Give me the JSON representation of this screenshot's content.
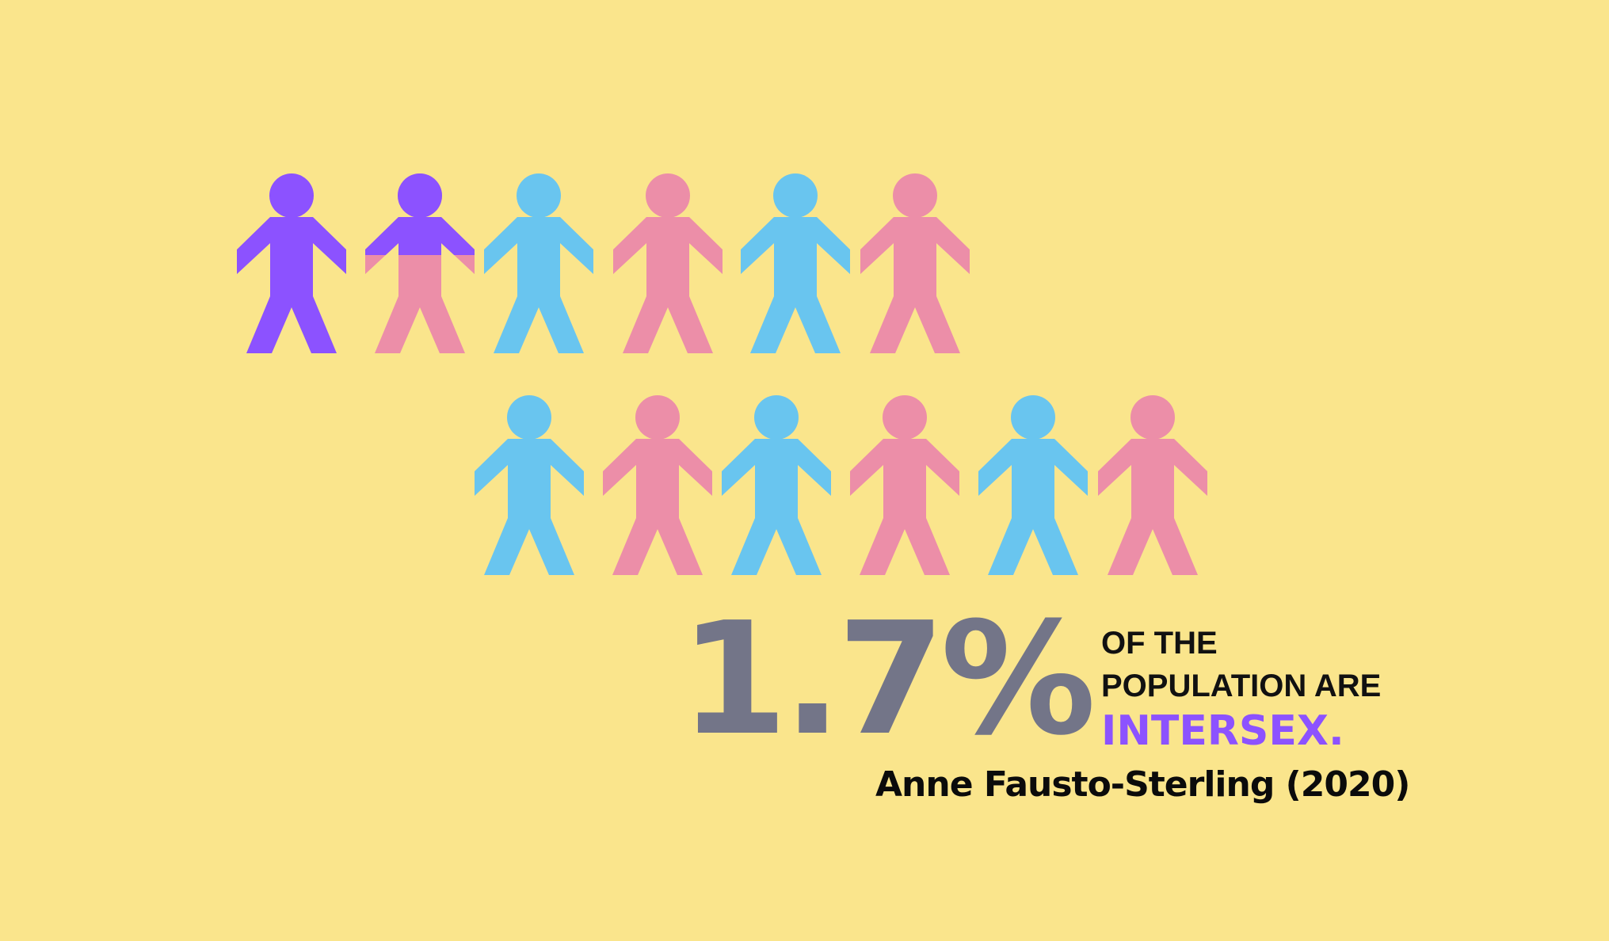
{
  "people": [
    {
      "row": 1,
      "color": "#8c52ff",
      "kind": "intersex-figure"
    },
    {
      "row": 1,
      "color": "split",
      "top_color": "#8c52ff",
      "bottom_color": "#ec8ea8",
      "kind": "partial-figure"
    },
    {
      "row": 1,
      "color": "#69c5ef",
      "kind": "figure"
    },
    {
      "row": 1,
      "color": "#ec8ea8",
      "kind": "figure"
    },
    {
      "row": 1,
      "color": "#69c5ef",
      "kind": "figure"
    },
    {
      "row": 1,
      "color": "#ec8ea8",
      "kind": "figure"
    },
    {
      "row": 2,
      "color": "#69c5ef",
      "kind": "figure"
    },
    {
      "row": 2,
      "color": "#ec8ea8",
      "kind": "figure"
    },
    {
      "row": 2,
      "color": "#69c5ef",
      "kind": "figure"
    },
    {
      "row": 2,
      "color": "#ec8ea8",
      "kind": "figure"
    },
    {
      "row": 2,
      "color": "#69c5ef",
      "kind": "figure"
    },
    {
      "row": 2,
      "color": "#ec8ea8",
      "kind": "figure"
    }
  ],
  "colors": {
    "background": "#fae58c",
    "intersex": "#8c52ff",
    "blue": "#69c5ef",
    "pink": "#ec8ea8",
    "stat": "#737588"
  },
  "stat": {
    "value": "1.7%",
    "line1": "OF THE",
    "line2": "POPULATION ARE",
    "highlight": "INTERSEX."
  },
  "source": "Anne Fausto-Sterling (2020)"
}
